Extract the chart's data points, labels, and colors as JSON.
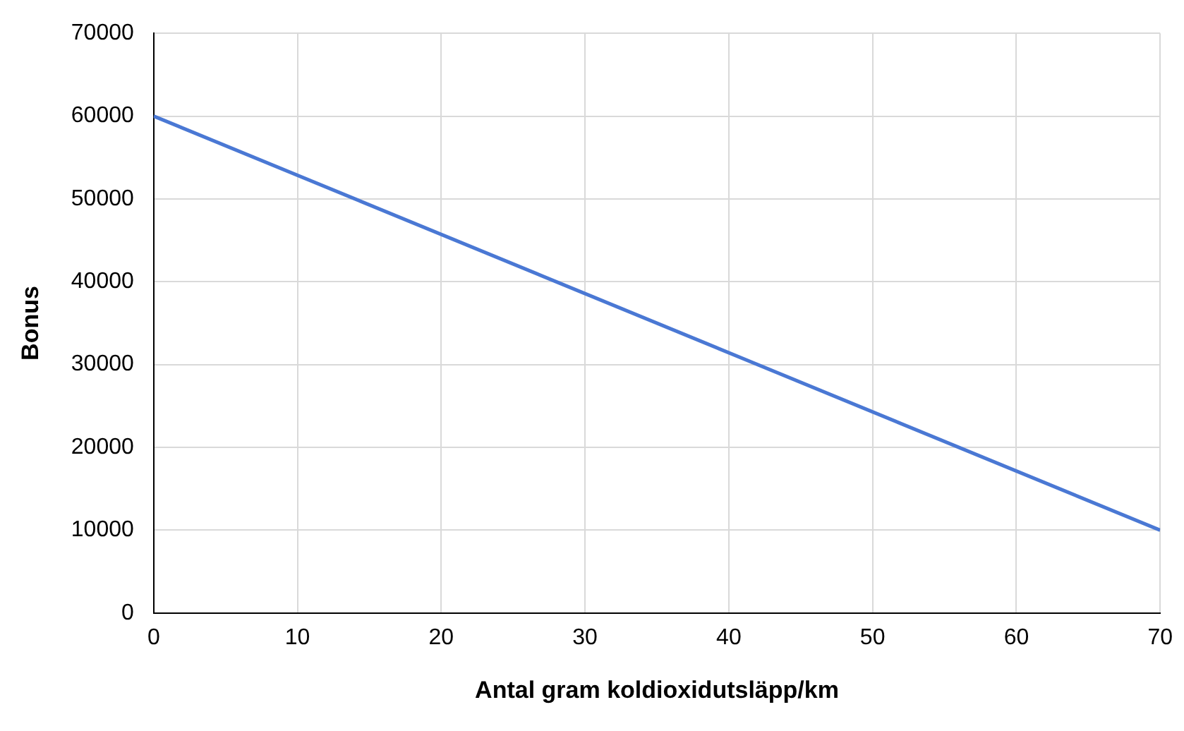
{
  "chart_data": {
    "type": "line",
    "xlabel": "Antal gram koldioxidutsläpp/km",
    "ylabel": "Bonus",
    "x": [
      0,
      70
    ],
    "series": [
      {
        "color": "#4a78d4",
        "values": [
          60000,
          10000
        ]
      }
    ],
    "xlim": [
      0,
      70
    ],
    "xticks": [
      0,
      10,
      20,
      30,
      40,
      50,
      60,
      70
    ],
    "ylim": [
      0,
      70000
    ],
    "yticks": [
      0,
      10000,
      20000,
      30000,
      40000,
      50000,
      60000,
      70000
    ],
    "grid": true,
    "legend": false,
    "marker": "none",
    "line_style": "solid"
  }
}
